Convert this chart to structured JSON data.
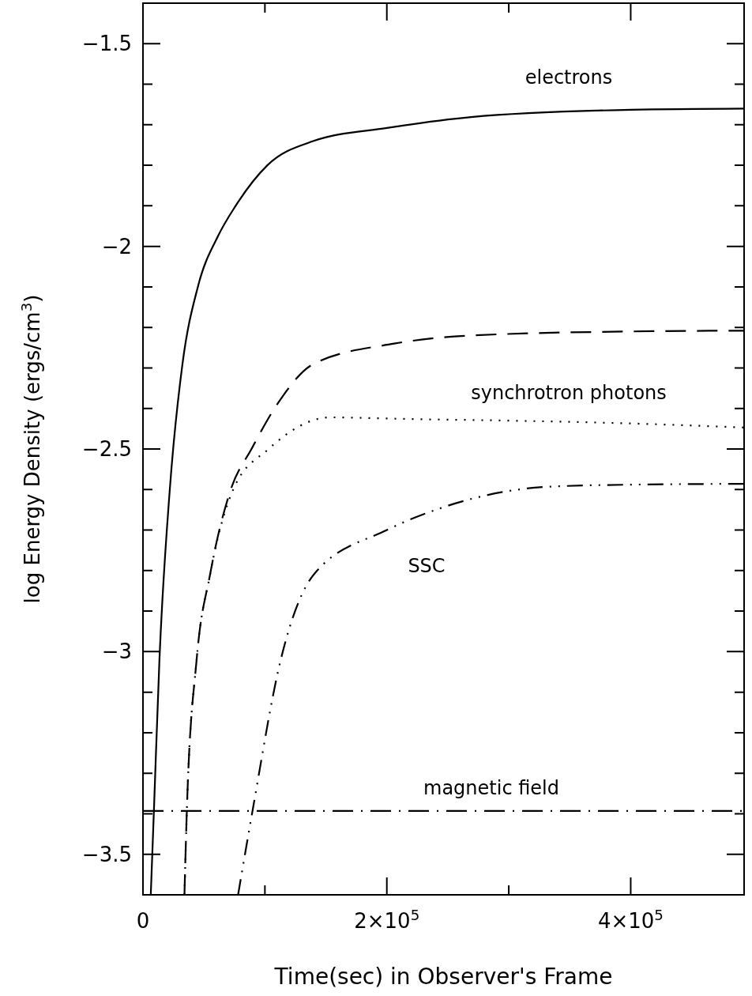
{
  "chart_data": {
    "type": "line",
    "xlabel": "Time(sec) in Observer's Frame",
    "ylabel": "log Energy Density (ergs/cm$^{3}$)",
    "xlim": [
      0,
      493000
    ],
    "ylim": [
      -3.6,
      -1.4
    ],
    "xticks": [
      0,
      {
        "value": 100000,
        "label": null
      },
      {
        "value": 200000,
        "label": "2×10$^{5}$"
      },
      {
        "value": 300000,
        "label": null
      },
      {
        "value": 400000,
        "label": "4×10$^{5}$"
      }
    ],
    "yticks": [
      {
        "value": -3.5,
        "label": "−3.5"
      },
      {
        "value": -3.4,
        "label": null
      },
      {
        "value": -3.3,
        "label": null
      },
      {
        "value": -3.2,
        "label": null
      },
      {
        "value": -3.1,
        "label": null
      },
      {
        "value": -3,
        "label": "−3"
      },
      {
        "value": -2.9,
        "label": null
      },
      {
        "value": -2.8,
        "label": null
      },
      {
        "value": -2.7,
        "label": null
      },
      {
        "value": -2.6,
        "label": null
      },
      {
        "value": -2.5,
        "label": "−2.5"
      },
      {
        "value": -2.4,
        "label": null
      },
      {
        "value": -2.3,
        "label": null
      },
      {
        "value": -2.2,
        "label": null
      },
      {
        "value": -2.1,
        "label": null
      },
      {
        "value": -2,
        "label": "−2"
      },
      {
        "value": -1.9,
        "label": null
      },
      {
        "value": -1.8,
        "label": null
      },
      {
        "value": -1.7,
        "label": null
      },
      {
        "value": -1.6,
        "label": null
      },
      {
        "value": -1.5,
        "label": "−1.5"
      }
    ],
    "grid": false,
    "series": [
      {
        "color": "#000000",
        "line_style": "solid",
        "x": [
          6400,
          9000,
          13500,
          22000,
          32400,
          45000,
          61500,
          76000,
          102000,
          140000,
          200000,
          269000,
          400000,
          493000
        ],
        "values": [
          -3.6,
          -3.39,
          -3.02,
          -2.6,
          -2.29,
          -2.1,
          -1.975,
          -1.9,
          -1.8,
          -1.74,
          -1.708,
          -1.681,
          -1.663,
          -1.66
        ]
      },
      {
        "color": "#000000",
        "line_style": "dashed",
        "x": [
          34000,
          36000,
          44000,
          55000,
          72000,
          89000,
          110000,
          140000,
          206000,
          269000,
          400000,
          493000
        ],
        "values": [
          -3.6,
          -3.39,
          -3.02,
          -2.81,
          -2.6,
          -2.5,
          -2.39,
          -2.29,
          -2.24,
          -2.22,
          -2.21,
          -2.208
        ]
      },
      {
        "color": "#000000",
        "line_style": "dotted",
        "x": [
          34000,
          36000,
          44000,
          55000,
          74000,
          103000,
          154000,
          217000,
          300000,
          400000,
          493000
        ],
        "values": [
          -3.6,
          -3.39,
          -3.02,
          -2.81,
          -2.6,
          -2.5,
          -2.422,
          -2.426,
          -2.43,
          -2.437,
          -2.447
        ]
      },
      {
        "color": "#000000",
        "line_style": "dashdotdot",
        "x": [
          78000,
          90000,
          113000,
          140000,
          200000,
          244000,
          333000,
          400000,
          493000
        ],
        "values": [
          -3.6,
          -3.39,
          -3.02,
          -2.81,
          -2.7,
          -2.646,
          -2.593,
          -2.588,
          -2.586
        ]
      },
      {
        "color": "#000000",
        "line_style": "dashdot",
        "x": [
          0,
          493000
        ],
        "values": [
          -3.393,
          -3.393
        ]
      }
    ],
    "annotations": [
      "electrons",
      "synchrotron photons",
      "SSC",
      "magnetic field"
    ]
  }
}
